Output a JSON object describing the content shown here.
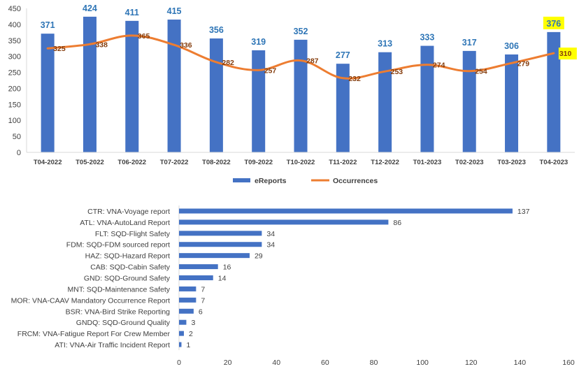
{
  "chart_data": [
    {
      "type": "bar+line",
      "categories": [
        "T04-2022",
        "T05-2022",
        "T06-2022",
        "T07-2022",
        "T08-2022",
        "T09-2022",
        "T10-2022",
        "T11-2022",
        "T12-2022",
        "T01-2023",
        "T02-2023",
        "T03-2023",
        "T04-2023"
      ],
      "series": [
        {
          "name": "eReports",
          "type": "bar",
          "color": "#4472c4",
          "label_color": "#2e75b6",
          "values": [
            371,
            424,
            411,
            415,
            356,
            319,
            352,
            277,
            313,
            333,
            317,
            306,
            376
          ]
        },
        {
          "name": "Occurrences",
          "type": "line",
          "color": "#ed7d31",
          "label_color": "#843c0c",
          "values": [
            325,
            338,
            365,
            336,
            282,
            257,
            287,
            232,
            253,
            274,
            254,
            279,
            310
          ]
        }
      ],
      "highlight_color": "#ffff00",
      "highlight_index": 12,
      "ylim": [
        0,
        450
      ],
      "yticks": [
        "0",
        "50",
        "100",
        "150",
        "200",
        "250",
        "300",
        "350",
        "400",
        "450"
      ],
      "legend": "bottom",
      "grid": false
    },
    {
      "type": "bar",
      "orientation": "horizontal",
      "color": "#4472c4",
      "categories": [
        "CTR: VNA-Voyage report",
        "ATL: VNA-AutoLand Report",
        "FLT: SQD-Flight Safety",
        "FDM: SQD-FDM sourced report",
        "HAZ: SQD-Hazard Report",
        "CAB: SQD-Cabin Safety",
        "GND: SQD-Ground Safety",
        "MNT: SQD-Maintenance Safety",
        "MOR: VNA-CAAV Mandatory Occurrence Report",
        "BSR: VNA-Bird Strike Reporting",
        "GNDQ: SQD-Ground Quality",
        "FRCM: VNA-Fatigue Report For Crew Member",
        "ATI: VNA-Air Traffic Incident Report"
      ],
      "values": [
        137,
        86,
        34,
        34,
        29,
        16,
        14,
        7,
        7,
        6,
        3,
        2,
        1
      ],
      "xlim": [
        0,
        160
      ],
      "xticks": [
        "0",
        "20",
        "40",
        "60",
        "80",
        "100",
        "120",
        "140",
        "160"
      ],
      "grid": false
    }
  ]
}
